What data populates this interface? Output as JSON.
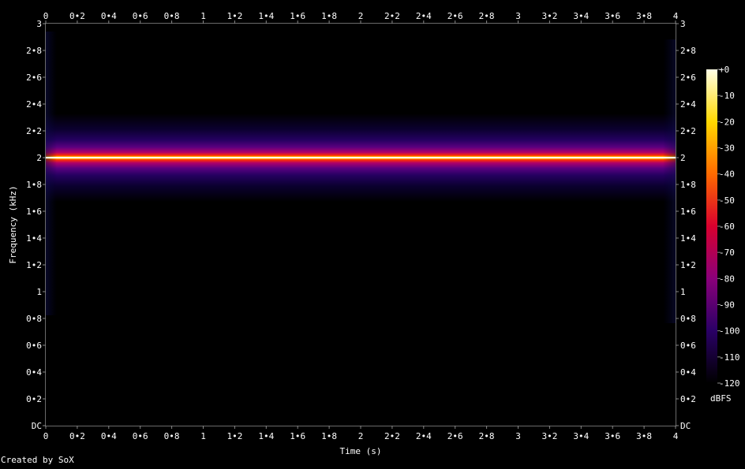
{
  "credit": "Created by SoX",
  "chart_data": {
    "type": "heatmap",
    "title": "",
    "xlabel": "Time (s)",
    "ylabel": "Frequency (kHz)",
    "x_range": [
      0,
      4
    ],
    "y_range_khz": [
      0,
      3
    ],
    "x_ticks": [
      "0",
      "0•2",
      "0•4",
      "0•6",
      "0•8",
      "1",
      "1•2",
      "1•4",
      "1•6",
      "1•8",
      "2",
      "2•2",
      "2•4",
      "2•6",
      "2•8",
      "3",
      "3•2",
      "3•4",
      "3•6",
      "3•8",
      "4"
    ],
    "y_ticks": [
      "DC",
      "0•2",
      "0•4",
      "0•6",
      "0•8",
      "1",
      "1•2",
      "1•4",
      "1•6",
      "1•8",
      "2",
      "2•2",
      "2•4",
      "2•6",
      "2•8",
      "3"
    ],
    "tone": {
      "frequency_khz": 2.0,
      "start_s": 0,
      "end_s": 4,
      "level_dbfs": 0
    },
    "colorbar": {
      "unit": "dBFS",
      "range_db": [
        -120,
        0
      ],
      "ticks": [
        "+0",
        "-10",
        "-20",
        "-30",
        "-40",
        "-50",
        "-60",
        "-70",
        "-80",
        "-90",
        "-100",
        "-110",
        "-120"
      ],
      "colors": [
        "#000000",
        "#2a0066",
        "#8a007a",
        "#d8002e",
        "#ff6a00",
        "#ffd800",
        "#ffffe6"
      ]
    }
  }
}
